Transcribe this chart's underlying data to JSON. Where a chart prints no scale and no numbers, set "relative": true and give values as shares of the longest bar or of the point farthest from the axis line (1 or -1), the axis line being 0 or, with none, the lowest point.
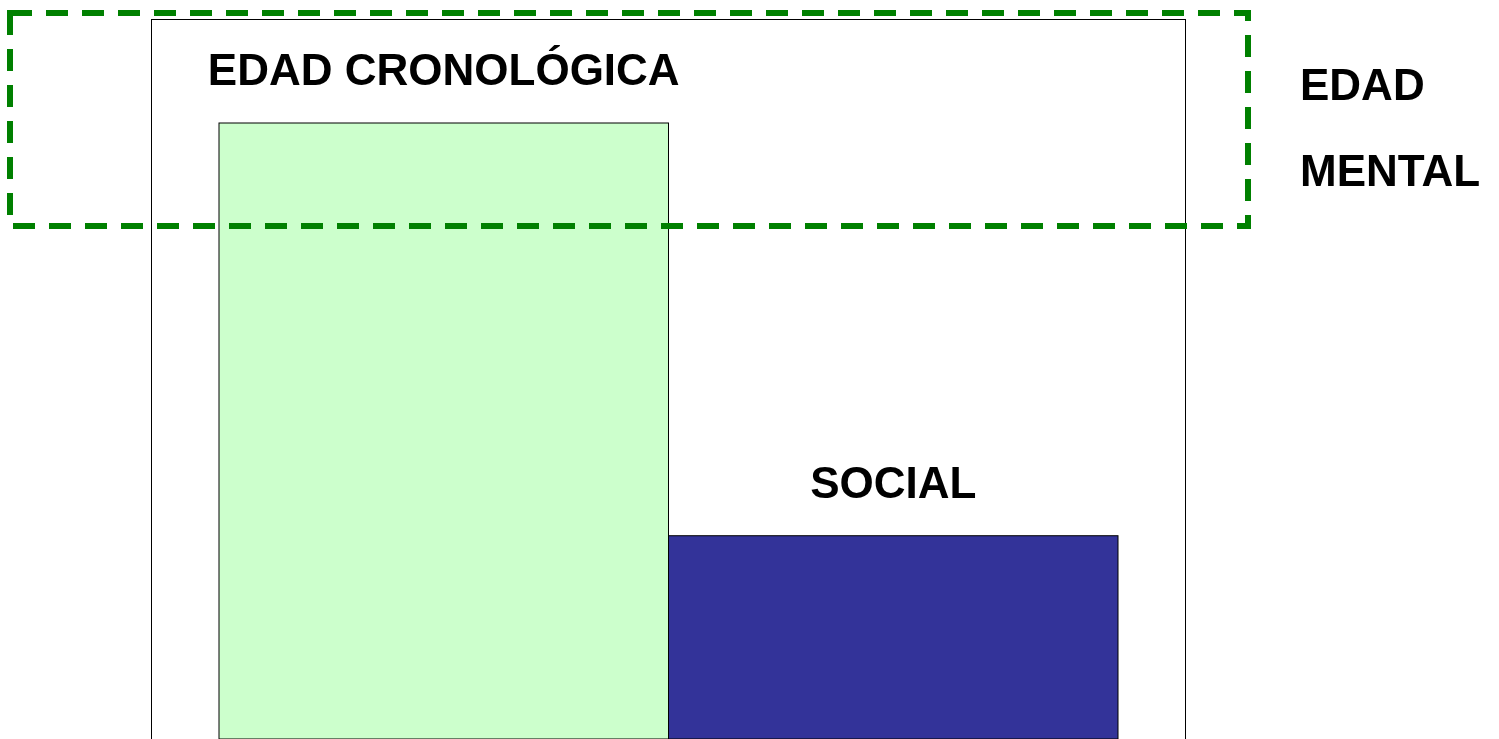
{
  "chart_data": {
    "type": "bar",
    "relative": true,
    "categories": [
      "EDAD CRONOLÓGICA",
      "SOCIAL"
    ],
    "values": [
      1,
      0.33
    ],
    "colors": [
      "#ccffcc",
      "#333399"
    ],
    "annotations": [
      "EDAD MENTAL"
    ]
  }
}
